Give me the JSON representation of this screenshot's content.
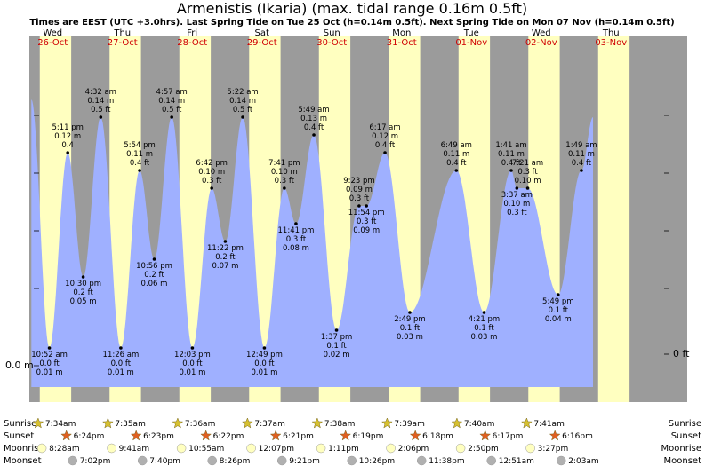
{
  "header": {
    "title": "Armenistis (Ikaria) (max. tidal range 0.16m 0.5ft)",
    "subtitle": "Times are EEST (UTC +3.0hrs). Last Spring Tide on Tue 25 Oct (h=0.14m 0.5ft). Next Spring Tide on Mon 07 Nov (h=0.14m 0.5ft)"
  },
  "axis": {
    "left_label": "0.0 m",
    "right_label": "0 ft"
  },
  "colors": {
    "night": "#9b9b9b",
    "day": "#ffffc0",
    "tide_fill": "#9fb0ff",
    "date_text": "#d00000",
    "sunrise_star": "#d6c030",
    "sunset_star": "#e06020",
    "moon_light": "#ffffc0",
    "moon_dark": "#b0b0b0"
  },
  "days": [
    {
      "day": "Wed",
      "date": "26-Oct"
    },
    {
      "day": "Thu",
      "date": "27-Oct"
    },
    {
      "day": "Fri",
      "date": "28-Oct"
    },
    {
      "day": "Sat",
      "date": "29-Oct"
    },
    {
      "day": "Sun",
      "date": "30-Oct"
    },
    {
      "day": "Mon",
      "date": "31-Oct"
    },
    {
      "day": "Tue",
      "date": "01-Nov"
    },
    {
      "day": "Wed",
      "date": "02-Nov"
    },
    {
      "day": "Thu",
      "date": "03-Nov"
    }
  ],
  "rows": {
    "sunrise": {
      "label": "Sunrise",
      "times": [
        "7:34am",
        "7:35am",
        "7:36am",
        "7:37am",
        "7:38am",
        "7:39am",
        "7:40am",
        "7:41am"
      ]
    },
    "sunset": {
      "label": "Sunset",
      "times": [
        "6:24pm",
        "6:23pm",
        "6:22pm",
        "6:21pm",
        "6:19pm",
        "6:18pm",
        "6:17pm",
        "6:16pm"
      ]
    },
    "moonrise": {
      "label": "Moonrise",
      "times": [
        "8:28am",
        "9:41am",
        "10:55am",
        "12:07pm",
        "1:11pm",
        "2:06pm",
        "2:50pm",
        "3:27pm"
      ]
    },
    "moonset": {
      "label": "Moonset",
      "times": [
        "7:02pm",
        "7:40pm",
        "8:26pm",
        "9:21pm",
        "10:26pm",
        "11:38pm",
        "12:51am",
        "2:03am"
      ]
    }
  },
  "chart_data": {
    "type": "area",
    "title": "Armenistis (Ikaria) (max. tidal range 0.16m 0.5ft)",
    "units": [
      "m",
      "ft"
    ],
    "tides": [
      {
        "day": 0,
        "time": "10:52 am",
        "m": "0.01 m",
        "ft": "0.0 ft",
        "x": 10.87,
        "y": 0.01,
        "kind": "low"
      },
      {
        "day": 0,
        "time": "5:11 pm",
        "m": "0.4",
        "ft": "0.12 m",
        "x": 17.18,
        "y": 0.12,
        "kind": "high"
      },
      {
        "day": 0,
        "time": "10:30 pm",
        "m": "0.05 m",
        "ft": "0.2 ft",
        "x": 22.5,
        "y": 0.05,
        "kind": "low"
      },
      {
        "day": 1,
        "time": "4:32 am",
        "m": "0.5 ft",
        "ft": "0.14 m",
        "x": 28.53,
        "y": 0.14,
        "kind": "high"
      },
      {
        "day": 1,
        "time": "11:26 am",
        "m": "0.01 m",
        "ft": "0.0 ft",
        "x": 35.43,
        "y": 0.01,
        "kind": "low"
      },
      {
        "day": 1,
        "time": "5:54 pm",
        "m": "0.4 ft",
        "ft": "0.11 m",
        "x": 41.9,
        "y": 0.11,
        "kind": "high"
      },
      {
        "day": 1,
        "time": "10:56 pm",
        "m": "0.06 m",
        "ft": "0.2 ft",
        "x": 46.93,
        "y": 0.06,
        "kind": "low"
      },
      {
        "day": 2,
        "time": "4:57 am",
        "m": "0.5 ft",
        "ft": "0.14 m",
        "x": 52.95,
        "y": 0.14,
        "kind": "high"
      },
      {
        "day": 2,
        "time": "12:03 pm",
        "m": "0.01 m",
        "ft": "0.0 ft",
        "x": 60.05,
        "y": 0.01,
        "kind": "low"
      },
      {
        "day": 2,
        "time": "6:42 pm",
        "m": "0.3 ft",
        "ft": "0.10 m",
        "x": 66.7,
        "y": 0.1,
        "kind": "high"
      },
      {
        "day": 2,
        "time": "11:22 pm",
        "m": "0.07 m",
        "ft": "0.2 ft",
        "x": 71.37,
        "y": 0.07,
        "kind": "low"
      },
      {
        "day": 3,
        "time": "5:22 am",
        "m": "0.5 ft",
        "ft": "0.14 m",
        "x": 77.37,
        "y": 0.14,
        "kind": "high"
      },
      {
        "day": 3,
        "time": "12:49 pm",
        "m": "0.01 m",
        "ft": "0.0 ft",
        "x": 84.82,
        "y": 0.01,
        "kind": "low"
      },
      {
        "day": 3,
        "time": "7:41 pm",
        "m": "0.3 ft",
        "ft": "0.10 m",
        "x": 91.68,
        "y": 0.1,
        "kind": "high"
      },
      {
        "day": 3,
        "time": "11:41 pm",
        "m": "0.08 m",
        "ft": "0.3 ft",
        "x": 95.68,
        "y": 0.08,
        "kind": "low"
      },
      {
        "day": 4,
        "time": "5:49 am",
        "m": "0.4 ft",
        "ft": "0.13 m",
        "x": 101.82,
        "y": 0.13,
        "kind": "high"
      },
      {
        "day": 4,
        "time": "1:37 pm",
        "m": "0.02 m",
        "ft": "0.1 ft",
        "x": 109.62,
        "y": 0.02,
        "kind": "low"
      },
      {
        "day": 4,
        "time": "9:23 pm",
        "m": "0.3 ft",
        "ft": "0.09 m",
        "x": 117.38,
        "y": 0.09,
        "kind": "high"
      },
      {
        "day": 4,
        "time": "11:54 pm",
        "m": "0.09 m",
        "ft": "0.3 ft",
        "x": 119.9,
        "y": 0.09,
        "kind": "low"
      },
      {
        "day": 5,
        "time": "6:17 am",
        "m": "0.4 ft",
        "ft": "0.12 m",
        "x": 126.28,
        "y": 0.12,
        "kind": "high"
      },
      {
        "day": 5,
        "time": "2:49 pm",
        "m": "0.03 m",
        "ft": "0.1 ft",
        "x": 134.82,
        "y": 0.03,
        "kind": "low"
      },
      {
        "day": 6,
        "time": "6:49 am",
        "m": "0.4 ft",
        "ft": "0.11 m",
        "x": 150.82,
        "y": 0.11,
        "kind": "high"
      },
      {
        "day": 6,
        "time": "4:21 pm",
        "m": "0.03 m",
        "ft": "0.1 ft",
        "x": 160.35,
        "y": 0.03,
        "kind": "low"
      },
      {
        "day": 7,
        "time": "1:41 am",
        "m": "0.4 ft",
        "ft": "0.11 m",
        "x": 169.68,
        "y": 0.11,
        "kind": "high"
      },
      {
        "day": 7,
        "time": "3:37 am",
        "m": "0.3 ft",
        "ft": "0.10 m",
        "x": 171.62,
        "y": 0.1,
        "kind": "low"
      },
      {
        "day": 7,
        "time": "7:21 am",
        "m": "0.10 m",
        "ft": "0.3 ft",
        "x": 175.35,
        "y": 0.1,
        "kind": "high"
      },
      {
        "day": 7,
        "time": "5:49 pm",
        "m": "0.04 m",
        "ft": "0.1 ft",
        "x": 185.82,
        "y": 0.04,
        "kind": "low"
      },
      {
        "day": 8,
        "time": "1:49 am",
        "m": "0.4 ft",
        "ft": "0.11 m",
        "x": 193.82,
        "y": 0.11,
        "kind": "high"
      }
    ],
    "xlim_hours": [
      0,
      216
    ],
    "ylim_m": [
      -0.012,
      0.16
    ],
    "xlabel": "",
    "ylabel": ""
  }
}
